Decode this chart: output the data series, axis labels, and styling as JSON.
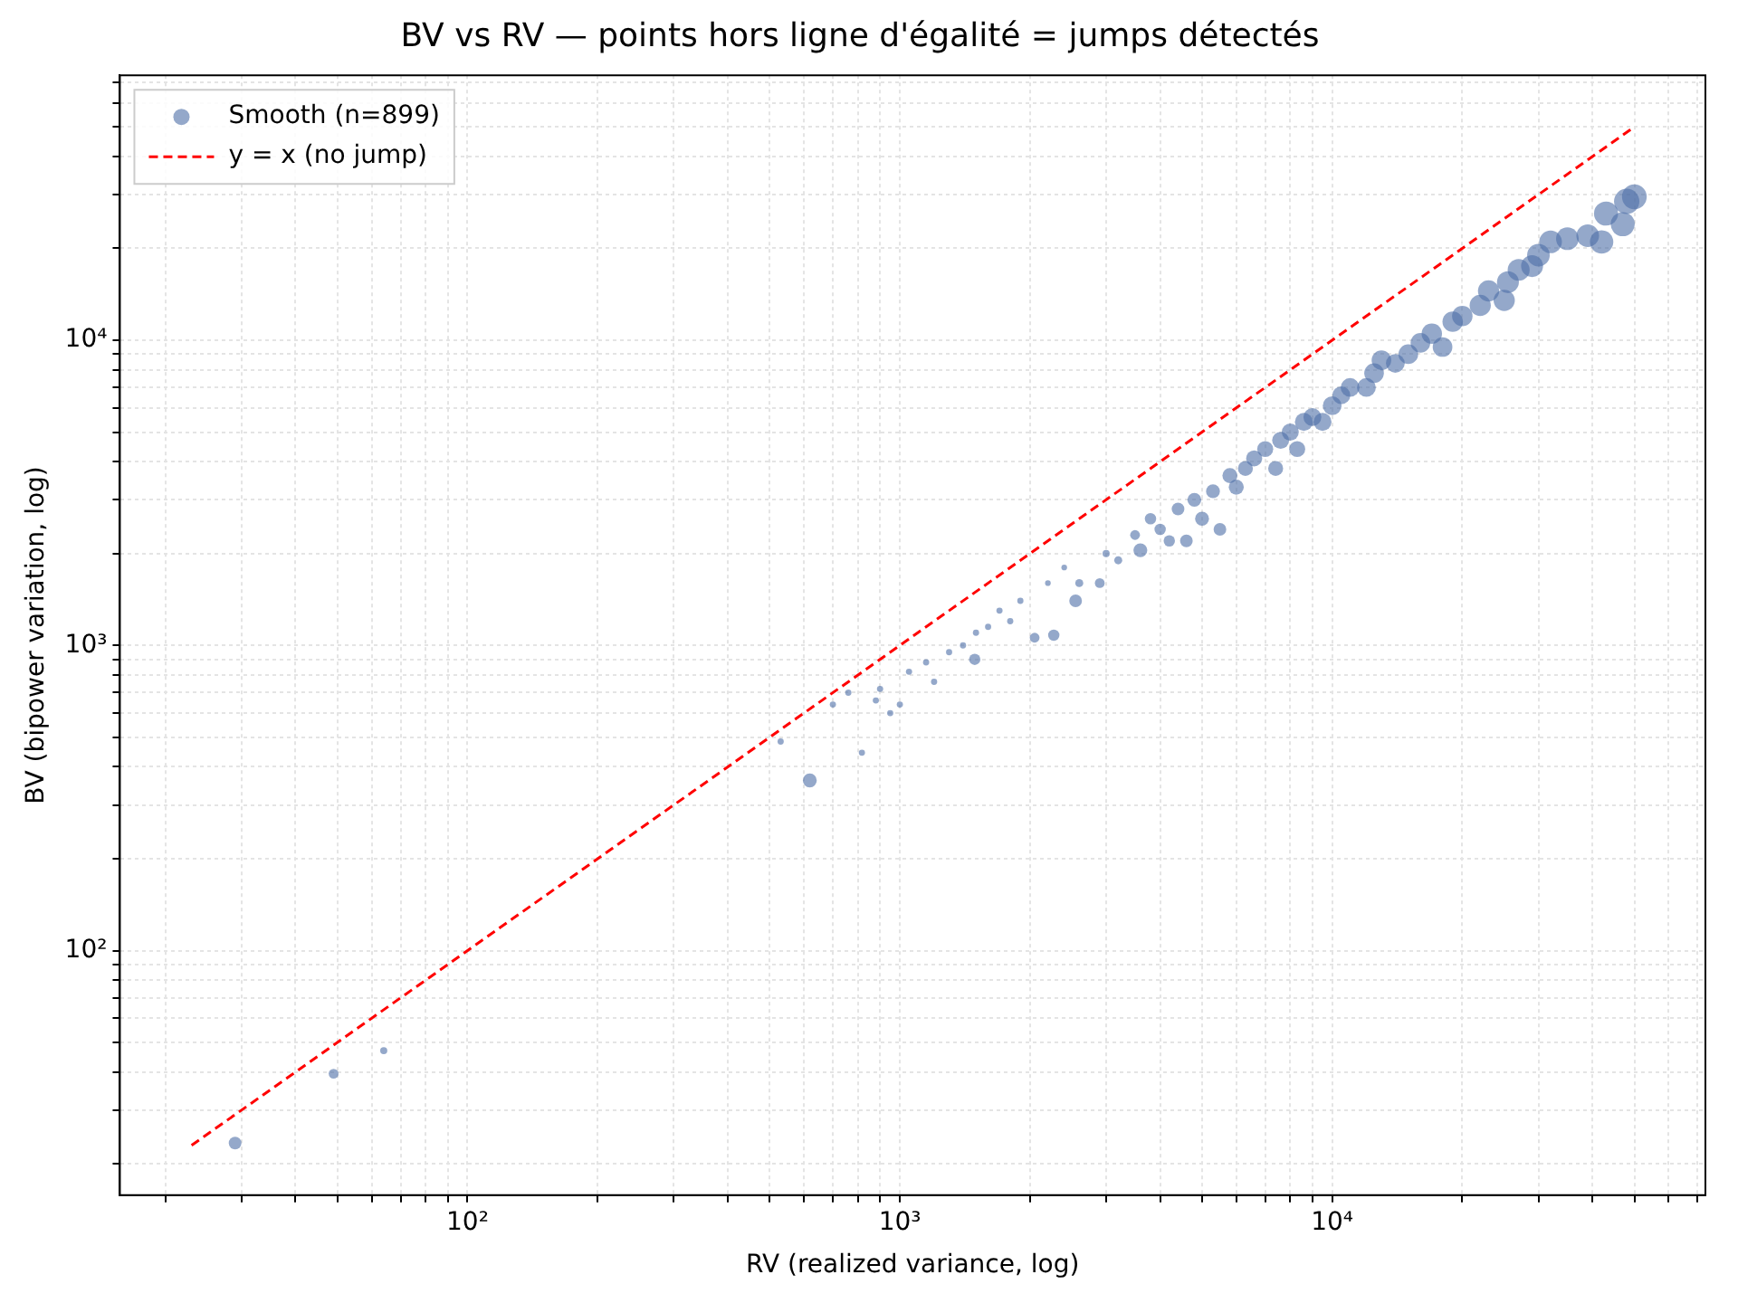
{
  "chart_data": {
    "type": "bubble",
    "title": "BV vs RV — points hors ligne d'égalité = jumps détectés",
    "xlabel": "RV (realized variance, log)",
    "ylabel": "BV (bipower variation, log)",
    "log": "xy",
    "grid": true,
    "legend": "top left",
    "marker": "circle",
    "xlim": [
      15.7,
      73000
    ],
    "ylim": [
      15.8,
      73800
    ],
    "xticks": [
      {
        "value": 20,
        "label": null
      },
      {
        "value": 30,
        "label": null
      },
      {
        "value": 40,
        "label": null
      },
      {
        "value": 50,
        "label": null
      },
      {
        "value": 60,
        "label": null
      },
      {
        "value": 70,
        "label": null
      },
      {
        "value": 80,
        "label": null
      },
      {
        "value": 90,
        "label": null
      },
      {
        "value": 100,
        "label": "10²"
      },
      {
        "value": 200,
        "label": null
      },
      {
        "value": 300,
        "label": null
      },
      {
        "value": 400,
        "label": null
      },
      {
        "value": 500,
        "label": null
      },
      {
        "value": 600,
        "label": null
      },
      {
        "value": 700,
        "label": null
      },
      {
        "value": 800,
        "label": null
      },
      {
        "value": 900,
        "label": null
      },
      {
        "value": 1000,
        "label": "10³"
      },
      {
        "value": 2000,
        "label": null
      },
      {
        "value": 3000,
        "label": null
      },
      {
        "value": 4000,
        "label": null
      },
      {
        "value": 5000,
        "label": null
      },
      {
        "value": 6000,
        "label": null
      },
      {
        "value": 7000,
        "label": null
      },
      {
        "value": 8000,
        "label": null
      },
      {
        "value": 9000,
        "label": null
      },
      {
        "value": 10000,
        "label": "10⁴"
      },
      {
        "value": 20000,
        "label": null
      },
      {
        "value": 30000,
        "label": null
      },
      {
        "value": 40000,
        "label": null
      },
      {
        "value": 50000,
        "label": null
      },
      {
        "value": 60000,
        "label": null
      },
      {
        "value": 70000,
        "label": null
      }
    ],
    "yticks": [
      {
        "value": 20,
        "label": null
      },
      {
        "value": 30,
        "label": null
      },
      {
        "value": 40,
        "label": null
      },
      {
        "value": 50,
        "label": null
      },
      {
        "value": 60,
        "label": null
      },
      {
        "value": 70,
        "label": null
      },
      {
        "value": 80,
        "label": null
      },
      {
        "value": 90,
        "label": null
      },
      {
        "value": 100,
        "label": "10²"
      },
      {
        "value": 200,
        "label": null
      },
      {
        "value": 300,
        "label": null
      },
      {
        "value": 400,
        "label": null
      },
      {
        "value": 500,
        "label": null
      },
      {
        "value": 600,
        "label": null
      },
      {
        "value": 700,
        "label": null
      },
      {
        "value": 800,
        "label": null
      },
      {
        "value": 900,
        "label": null
      },
      {
        "value": 1000,
        "label": "10³"
      },
      {
        "value": 2000,
        "label": null
      },
      {
        "value": 3000,
        "label": null
      },
      {
        "value": 4000,
        "label": null
      },
      {
        "value": 5000,
        "label": null
      },
      {
        "value": 6000,
        "label": null
      },
      {
        "value": 7000,
        "label": null
      },
      {
        "value": 8000,
        "label": null
      },
      {
        "value": 9000,
        "label": null
      },
      {
        "value": 10000,
        "label": "10⁴"
      },
      {
        "value": 20000,
        "label": null
      },
      {
        "value": 30000,
        "label": null
      },
      {
        "value": 40000,
        "label": null
      },
      {
        "value": 50000,
        "label": null
      },
      {
        "value": 60000,
        "label": null
      },
      {
        "value": 70000,
        "label": null
      }
    ],
    "series": [
      {
        "name": "Smooth (n=899)",
        "color": "#4c6ea6",
        "x": [
          29,
          49,
          64,
          530,
          619,
          700,
          760,
          817,
          880,
          900,
          950,
          1000,
          1050,
          1150,
          1200,
          1300,
          1400,
          1490,
          1500,
          1600,
          1700,
          1800,
          1900,
          2050,
          2200,
          2270,
          2400,
          2550,
          2600,
          2900,
          3000,
          3200,
          3500,
          3600,
          3800,
          4000,
          4200,
          4400,
          4600,
          4800,
          5000,
          5300,
          5500,
          5800,
          6000,
          6300,
          6600,
          7000,
          7400,
          7600,
          8000,
          8300,
          8600,
          9000,
          9500,
          10000,
          10500,
          11000,
          12000,
          12500,
          13000,
          14000,
          15000,
          16000,
          17000,
          18000,
          19000,
          20000,
          22000,
          23000,
          25000,
          25500,
          27000,
          29000,
          30000,
          32000,
          35000,
          39000,
          42000,
          43000,
          47000,
          48000,
          50000
        ],
        "values": [
          23.4,
          39.5,
          47,
          484,
          361,
          640,
          700,
          445,
          660,
          720,
          600,
          640,
          820,
          880,
          760,
          950,
          1000,
          900,
          1100,
          1150,
          1300,
          1200,
          1400,
          1060,
          1600,
          1080,
          1800,
          1400,
          1600,
          1600,
          2000,
          1900,
          2300,
          2050,
          2600,
          2400,
          2200,
          2800,
          2200,
          3000,
          2600,
          3200,
          2400,
          3600,
          3300,
          3800,
          4100,
          4400,
          3800,
          4700,
          5000,
          4400,
          5400,
          5600,
          5400,
          6100,
          6600,
          7000,
          7000,
          7800,
          8600,
          8400,
          9000,
          9800,
          10500,
          9500,
          11500,
          12000,
          13000,
          14500,
          13500,
          15500,
          17000,
          17500,
          19000,
          21000,
          21500,
          22000,
          21000,
          26000,
          24000,
          28500,
          29500
        ],
        "sizes": [
          0.25,
          0.15,
          0.08,
          0.06,
          0.3,
          0.06,
          0.06,
          0.06,
          0.06,
          0.06,
          0.06,
          0.06,
          0.06,
          0.06,
          0.06,
          0.06,
          0.06,
          0.2,
          0.06,
          0.06,
          0.06,
          0.06,
          0.06,
          0.15,
          0.05,
          0.2,
          0.05,
          0.25,
          0.1,
          0.15,
          0.08,
          0.1,
          0.15,
          0.3,
          0.2,
          0.2,
          0.2,
          0.25,
          0.25,
          0.3,
          0.3,
          0.3,
          0.25,
          0.35,
          0.35,
          0.35,
          0.4,
          0.4,
          0.35,
          0.45,
          0.45,
          0.4,
          0.5,
          0.5,
          0.5,
          0.55,
          0.5,
          0.55,
          0.55,
          0.6,
          0.6,
          0.55,
          0.6,
          0.6,
          0.65,
          0.6,
          0.65,
          0.65,
          0.7,
          0.7,
          0.7,
          0.75,
          0.75,
          0.75,
          0.8,
          0.8,
          0.8,
          0.8,
          0.85,
          0.9,
          0.9,
          1.0,
          0.95
        ]
      },
      {
        "name": "y = x (no jump)",
        "type": "line",
        "color": "#ff0000",
        "line_style": "dashed",
        "marker": "none",
        "x": [
          23,
          50000
        ],
        "values": [
          23,
          50000
        ]
      }
    ]
  }
}
